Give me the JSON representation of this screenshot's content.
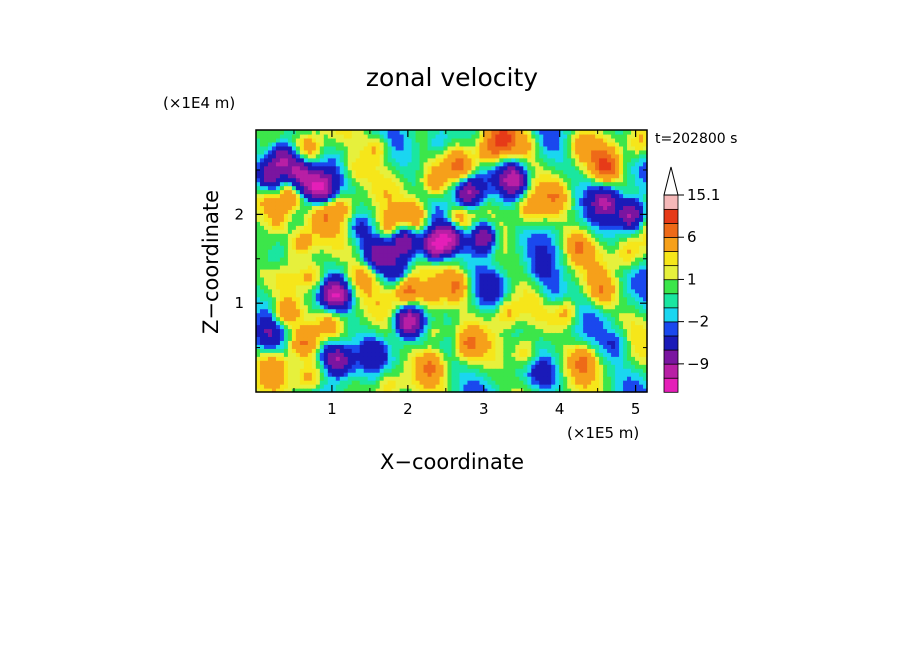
{
  "chart_data": {
    "type": "heatmap",
    "title": "zonal velocity",
    "time_label": "t=202800 s",
    "xlabel": "X−coordinate",
    "ylabel": "Z−coordinate",
    "x_unit": "(×1E5 m)",
    "y_unit": "(×1E4 m)",
    "xlim": [
      0,
      5.15
    ],
    "ylim": [
      0,
      2.95
    ],
    "x_ticks": [
      1,
      2,
      3,
      4,
      5
    ],
    "y_ticks": [
      1,
      2
    ],
    "x_tick_labels": [
      "1",
      "2",
      "3",
      "4",
      "5"
    ],
    "y_tick_labels": [
      "1",
      "2"
    ],
    "colorbar": {
      "levels": [
        -15,
        -12,
        -9,
        -6,
        -3,
        -2,
        -1,
        0,
        1,
        2,
        3,
        6,
        9,
        12,
        15.1
      ],
      "labels": [
        "15.1",
        "6",
        "1",
        "−2",
        "−9"
      ],
      "label_values": [
        15.1,
        6,
        1,
        -2,
        -9
      ],
      "colors": [
        "#e51fb8",
        "#b81fa5",
        "#7a15a0",
        "#1a1ab8",
        "#1a48ee",
        "#1ad6f0",
        "#1ae6a0",
        "#3ce64a",
        "#e6f03c",
        "#f6e61a",
        "#f6a01a",
        "#ee6a18",
        "#e63a18",
        "#f5b8b8"
      ]
    },
    "features": [
      {
        "x": 0.35,
        "z": 2.65,
        "u": -10
      },
      {
        "x": 0.55,
        "z": 2.5,
        "u": -9
      },
      {
        "x": 0.2,
        "z": 2.45,
        "u": -8
      },
      {
        "x": 0.45,
        "z": 2.2,
        "u": 6
      },
      {
        "x": 0.15,
        "z": 2.15,
        "u": 5
      },
      {
        "x": 0.3,
        "z": 1.95,
        "u": 6
      },
      {
        "x": 0.65,
        "z": 2.35,
        "u": -6
      },
      {
        "x": 0.85,
        "z": 2.3,
        "u": -11
      },
      {
        "x": 0.7,
        "z": 2.75,
        "u": 5
      },
      {
        "x": 0.9,
        "z": 2.0,
        "u": 4
      },
      {
        "x": 0.6,
        "z": 1.7,
        "u": 5
      },
      {
        "x": 0.25,
        "z": 1.5,
        "u": -3
      },
      {
        "x": 1.05,
        "z": 1.1,
        "u": -10
      },
      {
        "x": 0.75,
        "z": 1.3,
        "u": 5
      },
      {
        "x": 0.4,
        "z": 0.9,
        "u": 6
      },
      {
        "x": 0.15,
        "z": 0.65,
        "u": -4
      },
      {
        "x": 0.6,
        "z": 0.55,
        "u": 6
      },
      {
        "x": 0.95,
        "z": 0.45,
        "u": -5
      },
      {
        "x": 1.1,
        "z": 0.35,
        "u": -9
      },
      {
        "x": 0.25,
        "z": 0.3,
        "u": 4
      },
      {
        "x": 0.7,
        "z": 0.15,
        "u": 5
      },
      {
        "x": 1.4,
        "z": 1.3,
        "u": 4
      },
      {
        "x": 1.6,
        "z": 1.55,
        "u": -6
      },
      {
        "x": 1.85,
        "z": 1.35,
        "u": -4
      },
      {
        "x": 2.0,
        "z": 1.15,
        "u": 8
      },
      {
        "x": 2.0,
        "z": 0.8,
        "u": -11
      },
      {
        "x": 1.75,
        "z": 1.85,
        "u": 5
      },
      {
        "x": 1.95,
        "z": 1.7,
        "u": -9
      },
      {
        "x": 2.1,
        "z": 2.0,
        "u": 6
      },
      {
        "x": 2.35,
        "z": 1.65,
        "u": -12
      },
      {
        "x": 2.55,
        "z": 1.75,
        "u": -10
      },
      {
        "x": 2.65,
        "z": 1.95,
        "u": 6
      },
      {
        "x": 3.0,
        "z": 1.75,
        "u": -11
      },
      {
        "x": 2.8,
        "z": 2.25,
        "u": -10
      },
      {
        "x": 2.35,
        "z": 2.35,
        "u": 5
      },
      {
        "x": 2.7,
        "z": 2.55,
        "u": 6
      },
      {
        "x": 2.4,
        "z": 2.8,
        "u": -4
      },
      {
        "x": 3.05,
        "z": 2.7,
        "u": 6
      },
      {
        "x": 3.4,
        "z": 2.4,
        "u": -11
      },
      {
        "x": 3.25,
        "z": 2.85,
        "u": 9
      },
      {
        "x": 3.6,
        "z": 2.05,
        "u": 4
      },
      {
        "x": 2.65,
        "z": 1.2,
        "u": 6
      },
      {
        "x": 2.3,
        "z": 1.05,
        "u": 4
      },
      {
        "x": 3.1,
        "z": 1.15,
        "u": -3
      },
      {
        "x": 3.3,
        "z": 0.9,
        "u": 4
      },
      {
        "x": 2.8,
        "z": 0.55,
        "u": 5
      },
      {
        "x": 2.3,
        "z": 0.3,
        "u": 5
      },
      {
        "x": 1.55,
        "z": 0.45,
        "u": -3
      },
      {
        "x": 1.75,
        "z": 0.1,
        "u": 4
      },
      {
        "x": 3.55,
        "z": 0.45,
        "u": 5
      },
      {
        "x": 3.8,
        "z": 0.2,
        "u": -3
      },
      {
        "x": 4.3,
        "z": 0.35,
        "u": 5
      },
      {
        "x": 4.75,
        "z": 0.55,
        "u": -3
      },
      {
        "x": 4.1,
        "z": 0.9,
        "u": 4
      },
      {
        "x": 4.55,
        "z": 1.15,
        "u": 5
      },
      {
        "x": 3.75,
        "z": 1.35,
        "u": -3
      },
      {
        "x": 4.9,
        "z": 1.55,
        "u": 4
      },
      {
        "x": 4.25,
        "z": 1.65,
        "u": 5
      },
      {
        "x": 3.95,
        "z": 2.2,
        "u": 4
      },
      {
        "x": 4.6,
        "z": 2.15,
        "u": -8
      },
      {
        "x": 4.95,
        "z": 2.0,
        "u": -11
      },
      {
        "x": 4.6,
        "z": 2.55,
        "u": 8
      },
      {
        "x": 4.3,
        "z": 2.75,
        "u": 4
      },
      {
        "x": 5.05,
        "z": 2.8,
        "u": 4
      },
      {
        "x": 3.55,
        "z": 2.8,
        "u": 4
      },
      {
        "x": 1.3,
        "z": 2.5,
        "u": 3
      },
      {
        "x": 1.6,
        "z": 2.75,
        "u": 4
      },
      {
        "x": 1.15,
        "z": 2.1,
        "u": 4
      },
      {
        "x": 1.35,
        "z": 1.85,
        "u": -3
      },
      {
        "x": 1.0,
        "z": 0.8,
        "u": 4
      },
      {
        "x": 2.35,
        "z": 0.7,
        "u": 4
      },
      {
        "x": 3.9,
        "z": 1.1,
        "u": -3
      }
    ]
  }
}
